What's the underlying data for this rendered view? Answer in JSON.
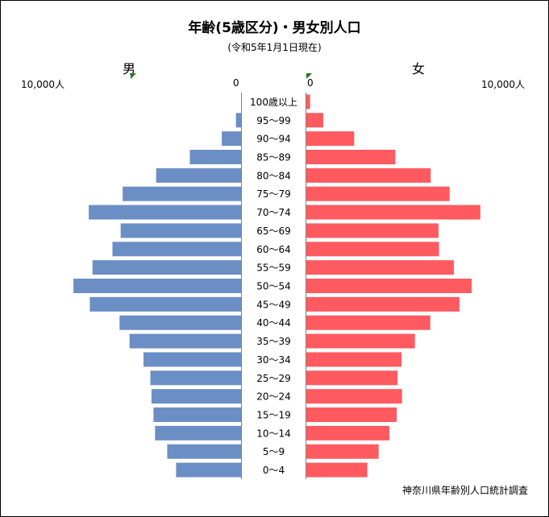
{
  "title": "年齢(5歳区分)・男女別人口",
  "subtitle": "(令和5年1月1日現在)",
  "labels": {
    "male": "男",
    "female": "女",
    "male_max": "10,000人",
    "male_zero": "0",
    "female_zero": "0",
    "female_max": "10,000人"
  },
  "source": "神奈川県年齢別人口統計調査",
  "colors": {
    "male": "#6b8fc4",
    "female": "#ff5a5f",
    "axis": "#808080"
  },
  "chart_data": {
    "type": "bar",
    "orientation": "horizontal-population-pyramid",
    "categories": [
      "100歳以上",
      "95〜99",
      "90〜94",
      "85〜89",
      "80〜84",
      "75〜79",
      "70〜74",
      "65〜69",
      "60〜64",
      "55〜59",
      "50〜54",
      "45〜49",
      "40〜44",
      "35〜39",
      "30〜34",
      "25〜29",
      "20〜24",
      "15〜19",
      "10〜14",
      "5〜9",
      "0〜4"
    ],
    "series": [
      {
        "name": "男",
        "values": [
          0,
          230,
          870,
          2310,
          3830,
          5340,
          6870,
          5430,
          5800,
          6700,
          7560,
          6820,
          5480,
          5030,
          4400,
          4090,
          4040,
          3950,
          3880,
          3330,
          2930
        ]
      },
      {
        "name": "女",
        "values": [
          170,
          760,
          2150,
          4000,
          5590,
          6440,
          7820,
          5940,
          5960,
          6630,
          7430,
          6880,
          5570,
          4880,
          4280,
          4100,
          4300,
          4060,
          3730,
          3250,
          2740
        ]
      }
    ],
    "xlim": [
      0,
      10000
    ],
    "unit": "人"
  }
}
